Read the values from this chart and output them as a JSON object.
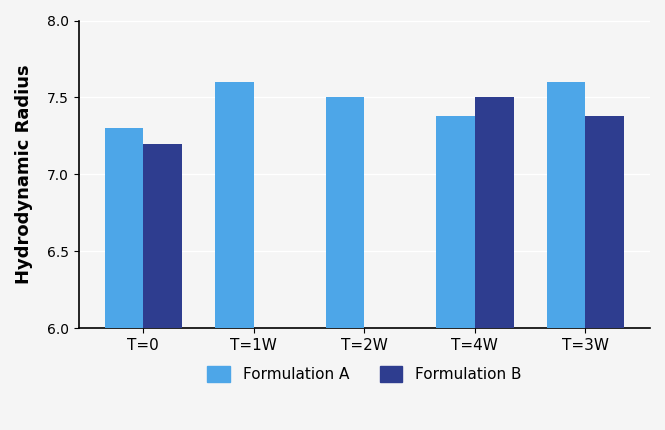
{
  "categories": [
    "T=0",
    "T=1W",
    "T=2W",
    "T=4W",
    "T=3W"
  ],
  "formulation_a": [
    7.3,
    7.6,
    7.5,
    7.38,
    7.6
  ],
  "formulation_b": [
    7.2,
    null,
    null,
    7.5,
    7.38
  ],
  "color_a": "#4da6e8",
  "color_b": "#2e3d8f",
  "ylabel": "Hydrodynamic Radius",
  "ylim": [
    6.0,
    8.0
  ],
  "yticks": [
    6.0,
    6.5,
    7.0,
    7.5,
    8.0
  ],
  "legend_a": "Formulation A",
  "legend_b": "Formulation B",
  "bar_width": 0.35,
  "figure_bg": "#f5f5f5",
  "axes_bg": "#f5f5f5"
}
